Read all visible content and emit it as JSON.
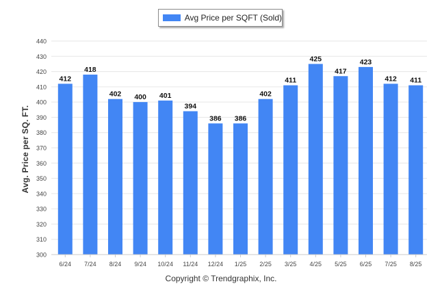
{
  "chart_data": {
    "type": "bar",
    "categories": [
      "6/24",
      "7/24",
      "8/24",
      "9/24",
      "10/24",
      "11/24",
      "12/24",
      "1/25",
      "2/25",
      "3/25",
      "4/25",
      "5/25",
      "6/25",
      "7/25",
      "8/25"
    ],
    "series": [
      {
        "name": "Avg Price per SQFT (Sold)",
        "values": [
          412,
          418,
          402,
          400,
          401,
          394,
          386,
          386,
          402,
          411,
          425,
          417,
          423,
          412,
          411
        ]
      }
    ],
    "yticks": [
      300,
      310,
      320,
      330,
      340,
      350,
      360,
      370,
      380,
      390,
      400,
      410,
      420,
      430,
      440
    ],
    "ylim": [
      300,
      440
    ],
    "ylabel": "Avg. Price per SQ. FT.",
    "xlabel": "",
    "grid": true,
    "legend_position": "top-center",
    "bar_color": "#4286f4"
  },
  "footer": {
    "copyright": "Copyright © Trendgraphix, Inc."
  }
}
